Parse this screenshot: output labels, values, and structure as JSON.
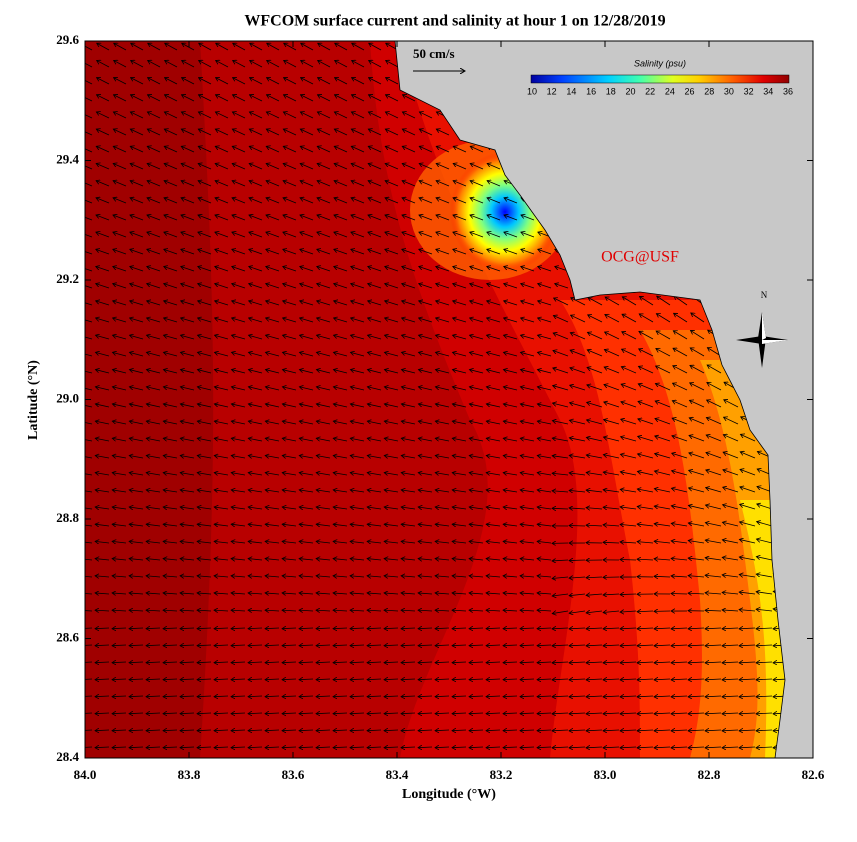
{
  "title": "WFCOM surface current and salinity at hour 1 on 12/28/2019",
  "map": {
    "xlabel": "Longitude (°W)",
    "ylabel": "Latitude (°N)",
    "xlim": [
      84.0,
      82.6
    ],
    "ylim": [
      28.4,
      29.6
    ],
    "xticks": [
      {
        "value": 84.0,
        "label": "84.0"
      },
      {
        "value": 83.8,
        "label": "83.8"
      },
      {
        "value": 83.6,
        "label": "83.6"
      },
      {
        "value": 83.4,
        "label": "83.4"
      },
      {
        "value": 83.2,
        "label": "83.2"
      },
      {
        "value": 83.0,
        "label": "83.0"
      },
      {
        "value": 82.8,
        "label": "82.8"
      },
      {
        "value": 82.6,
        "label": "82.6"
      }
    ],
    "yticks": [
      28.4,
      28.6,
      28.8,
      {
        "value": 29.0,
        "label": "29.0"
      },
      29.2,
      29.4,
      29.6
    ]
  },
  "colorbar": {
    "label": "Salinity (psu)",
    "ticks": [
      10,
      12,
      14,
      16,
      18,
      20,
      22,
      24,
      26,
      28,
      30,
      32,
      34,
      36
    ]
  },
  "scale_label": "50 cm/s",
  "credit": "OCG@USF",
  "north": "N"
}
